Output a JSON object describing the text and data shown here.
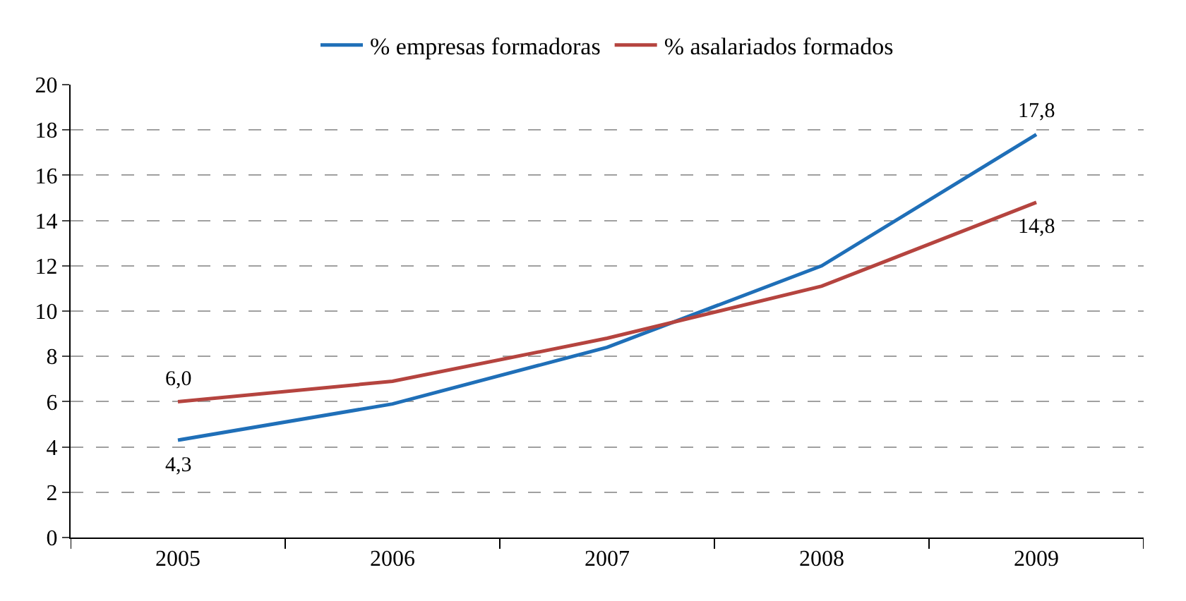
{
  "chart_data": {
    "type": "line",
    "categories": [
      "2005",
      "2006",
      "2007",
      "2008",
      "2009"
    ],
    "series": [
      {
        "name": "% empresas formadoras",
        "color": "#1f6fb8",
        "values": [
          4.3,
          5.9,
          8.4,
          12.0,
          17.8
        ],
        "value_labels": [
          "4,3",
          null,
          null,
          null,
          "17,8"
        ]
      },
      {
        "name": "% asalariados formados",
        "color": "#b5443f",
        "values": [
          6.0,
          6.9,
          8.8,
          11.1,
          14.8
        ],
        "value_labels": [
          "6,0",
          null,
          null,
          null,
          "14,8"
        ]
      }
    ],
    "ylim": [
      0,
      20
    ],
    "yticks": [
      0,
      2,
      4,
      6,
      8,
      10,
      12,
      14,
      16,
      18,
      20
    ],
    "grid": "y",
    "legend": "top",
    "marker": "none",
    "line_style": "solid"
  }
}
